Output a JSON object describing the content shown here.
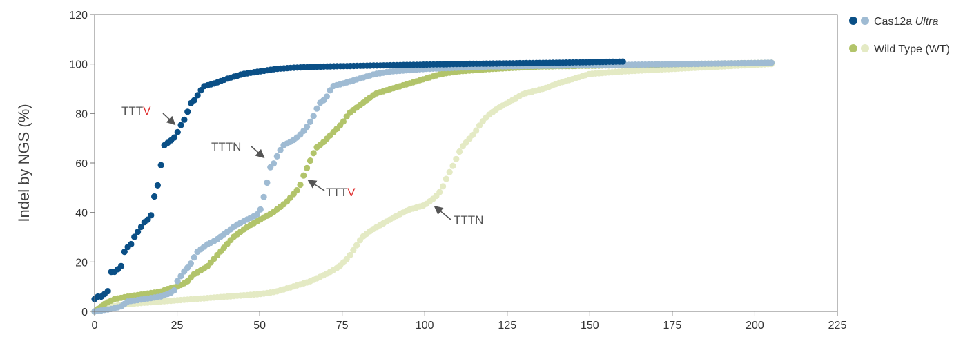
{
  "chart_data": {
    "type": "scatter",
    "ylabel": "Indel by NGS (%)",
    "xlabel": "",
    "xlim": [
      0,
      225
    ],
    "ylim": [
      0,
      120
    ],
    "x_ticks": [
      "0",
      "25",
      "50",
      "75",
      "100",
      "125",
      "150",
      "175",
      "200",
      "225"
    ],
    "y_ticks": [
      "0",
      "20",
      "40",
      "60",
      "80",
      "100",
      "120"
    ],
    "legend": [
      {
        "label_main": "Cas12a ",
        "label_italic": "Ultra",
        "colors": [
          "#0a4f86",
          "#9fbbd3"
        ]
      },
      {
        "label_main": "Wild Type (WT)",
        "label_italic": "",
        "colors": [
          "#b2c46a",
          "#e4eac4"
        ]
      }
    ],
    "series": [
      {
        "name": "Cas12a Ultra TTTV",
        "color": "#0a4f86",
        "n": 160,
        "points": [
          [
            0,
            5
          ],
          [
            1,
            6
          ],
          [
            2,
            6
          ],
          [
            3,
            7
          ],
          [
            4,
            8
          ],
          [
            5,
            16
          ],
          [
            6,
            16
          ],
          [
            7,
            17
          ],
          [
            8,
            18
          ],
          [
            9,
            24
          ],
          [
            10,
            26
          ],
          [
            11,
            27
          ],
          [
            12,
            30
          ],
          [
            13,
            32
          ],
          [
            14,
            34
          ],
          [
            15,
            36
          ],
          [
            16,
            37
          ],
          [
            17,
            38
          ],
          [
            18,
            46
          ],
          [
            19,
            50
          ],
          [
            20,
            58
          ],
          [
            21,
            67
          ],
          [
            22,
            68
          ],
          [
            23,
            69
          ],
          [
            24,
            70
          ],
          [
            25,
            72
          ],
          [
            26,
            75
          ],
          [
            27,
            77
          ],
          [
            28,
            80
          ],
          [
            29,
            84
          ],
          [
            30,
            85
          ],
          [
            31,
            87
          ],
          [
            33,
            91
          ],
          [
            36,
            92
          ],
          [
            40,
            94
          ],
          [
            45,
            96
          ],
          [
            50,
            97
          ],
          [
            55,
            98
          ],
          [
            60,
            98.5
          ],
          [
            70,
            99
          ],
          [
            90,
            99.5
          ],
          [
            110,
            100
          ],
          [
            140,
            100.5
          ],
          [
            160,
            101
          ]
        ]
      },
      {
        "name": "Cas12a Ultra TTTN",
        "color": "#9fbbd3",
        "n": 205,
        "points": [
          [
            0,
            0
          ],
          [
            5,
            1
          ],
          [
            8,
            2
          ],
          [
            10,
            4
          ],
          [
            15,
            5
          ],
          [
            20,
            6
          ],
          [
            24,
            8
          ],
          [
            25,
            12
          ],
          [
            27,
            16
          ],
          [
            29,
            19
          ],
          [
            31,
            24
          ],
          [
            34,
            27
          ],
          [
            37,
            29
          ],
          [
            40,
            32
          ],
          [
            43,
            35
          ],
          [
            46,
            37
          ],
          [
            49,
            39
          ],
          [
            50,
            40
          ],
          [
            51,
            45
          ],
          [
            52,
            50
          ],
          [
            53,
            58
          ],
          [
            54,
            59
          ],
          [
            55,
            62
          ],
          [
            57,
            67
          ],
          [
            60,
            69
          ],
          [
            62,
            71
          ],
          [
            64,
            74
          ],
          [
            66,
            78
          ],
          [
            68,
            84
          ],
          [
            70,
            86
          ],
          [
            72,
            91
          ],
          [
            75,
            92
          ],
          [
            80,
            94
          ],
          [
            85,
            96
          ],
          [
            90,
            97
          ],
          [
            100,
            98
          ],
          [
            120,
            99
          ],
          [
            150,
            99.5
          ],
          [
            180,
            100
          ],
          [
            205,
            100.5
          ]
        ]
      },
      {
        "name": "WT TTTV",
        "color": "#b2c46a",
        "n": 205,
        "points": [
          [
            0,
            0
          ],
          [
            1,
            1
          ],
          [
            3,
            3
          ],
          [
            6,
            5
          ],
          [
            10,
            6
          ],
          [
            15,
            7
          ],
          [
            20,
            8
          ],
          [
            22,
            9
          ],
          [
            25,
            10
          ],
          [
            28,
            12
          ],
          [
            30,
            15
          ],
          [
            34,
            18
          ],
          [
            38,
            24
          ],
          [
            42,
            30
          ],
          [
            46,
            34
          ],
          [
            50,
            37
          ],
          [
            54,
            40
          ],
          [
            58,
            44
          ],
          [
            60,
            47
          ],
          [
            62,
            50
          ],
          [
            63,
            54
          ],
          [
            64,
            57
          ],
          [
            65,
            60
          ],
          [
            66,
            63
          ],
          [
            67,
            66
          ],
          [
            69,
            68
          ],
          [
            72,
            72
          ],
          [
            75,
            76
          ],
          [
            77,
            80
          ],
          [
            79,
            82
          ],
          [
            82,
            85
          ],
          [
            85,
            88
          ],
          [
            90,
            90
          ],
          [
            95,
            92
          ],
          [
            100,
            94
          ],
          [
            105,
            96
          ],
          [
            110,
            97
          ],
          [
            120,
            98
          ],
          [
            135,
            99
          ],
          [
            160,
            99.5
          ],
          [
            180,
            100
          ],
          [
            205,
            100.5
          ]
        ]
      },
      {
        "name": "WT TTTN",
        "color": "#e4eac4",
        "n": 205,
        "points": [
          [
            0,
            0
          ],
          [
            5,
            2
          ],
          [
            10,
            3
          ],
          [
            20,
            4
          ],
          [
            30,
            5
          ],
          [
            40,
            6
          ],
          [
            50,
            7
          ],
          [
            55,
            8
          ],
          [
            60,
            10
          ],
          [
            65,
            12
          ],
          [
            70,
            15
          ],
          [
            74,
            18
          ],
          [
            77,
            22
          ],
          [
            79,
            26
          ],
          [
            81,
            30
          ],
          [
            84,
            33
          ],
          [
            88,
            36
          ],
          [
            92,
            39
          ],
          [
            95,
            41
          ],
          [
            100,
            43
          ],
          [
            103,
            46
          ],
          [
            105,
            49
          ],
          [
            107,
            55
          ],
          [
            109,
            60
          ],
          [
            111,
            66
          ],
          [
            113,
            69
          ],
          [
            115,
            72
          ],
          [
            117,
            76
          ],
          [
            119,
            79
          ],
          [
            122,
            82
          ],
          [
            126,
            85
          ],
          [
            130,
            88
          ],
          [
            136,
            90
          ],
          [
            140,
            92
          ],
          [
            145,
            94
          ],
          [
            150,
            96
          ],
          [
            160,
            97
          ],
          [
            175,
            98
          ],
          [
            190,
            99
          ],
          [
            205,
            100
          ]
        ]
      }
    ],
    "annotations": [
      {
        "text_main": "TTT",
        "text_red": "V",
        "color_red": "#e03131"
      },
      {
        "text_main": "TTTN",
        "text_red": ""
      },
      {
        "text_main": "TTT",
        "text_red": "V",
        "color_red": "#e03131"
      },
      {
        "text_main": "TTTN",
        "text_red": ""
      }
    ]
  }
}
